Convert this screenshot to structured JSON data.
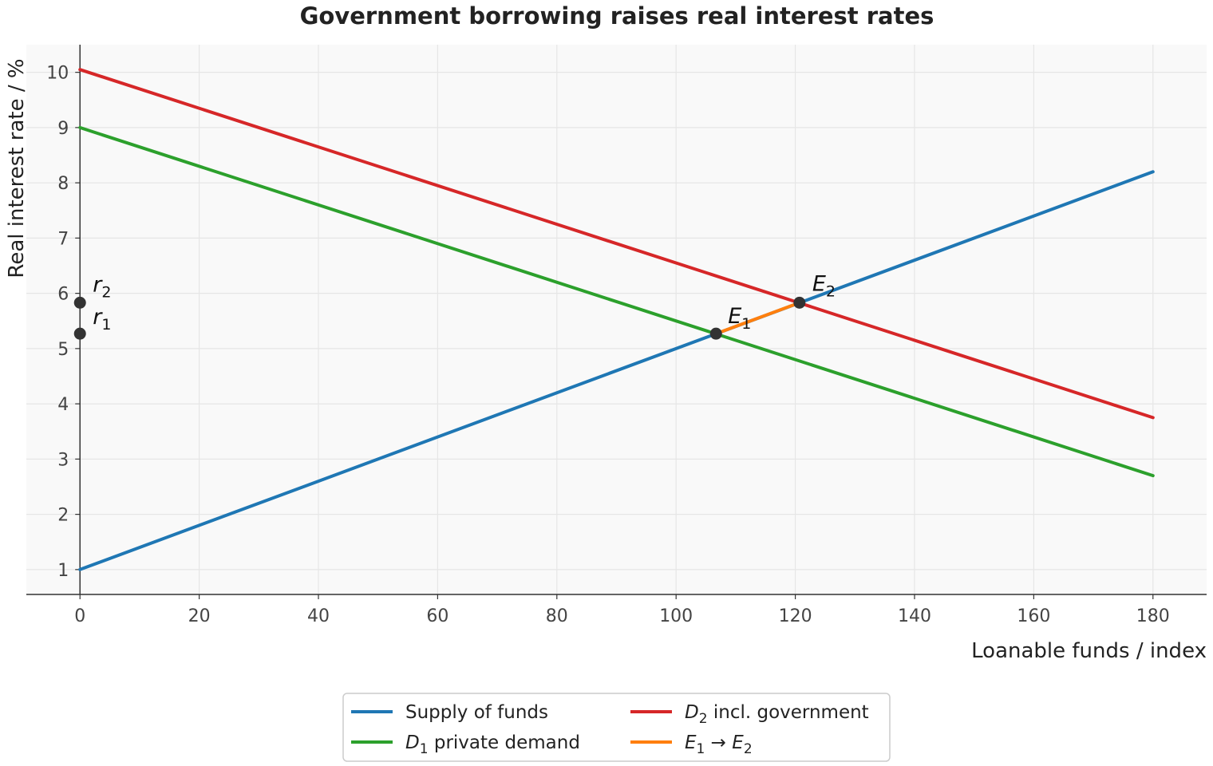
{
  "chart_data": {
    "type": "line",
    "title": "Government borrowing raises real interest rates",
    "xlabel": "Loanable funds / index",
    "ylabel": "Real interest rate / %",
    "xlim": [
      -9,
      189
    ],
    "ylim": [
      0.55,
      10.5
    ],
    "xticks": [
      0,
      20,
      40,
      60,
      80,
      100,
      120,
      140,
      160,
      180
    ],
    "yticks": [
      1,
      2,
      3,
      4,
      5,
      6,
      7,
      8,
      9,
      10
    ],
    "grid": true,
    "legend_position": "bottom-center",
    "series": [
      {
        "id": "supply",
        "name": "Supply of funds",
        "color": "#1f77b4",
        "x": [
          0,
          180
        ],
        "y": [
          1.0,
          8.2
        ]
      },
      {
        "id": "d1",
        "name": "D1 private demand",
        "color": "#2ca02c",
        "x": [
          0,
          180
        ],
        "y": [
          9.0,
          2.7
        ]
      },
      {
        "id": "d2",
        "name": "D2 incl. government",
        "color": "#d62728",
        "x": [
          0,
          180
        ],
        "y": [
          10.05,
          3.75
        ]
      },
      {
        "id": "shift",
        "name": "E1 → E2",
        "color": "#ff7f0e",
        "x": [
          106.7,
          120.7
        ],
        "y": [
          5.27,
          5.83
        ]
      }
    ],
    "points": [
      {
        "id": "E1",
        "x": 106.7,
        "y": 5.27
      },
      {
        "id": "E2",
        "x": 120.7,
        "y": 5.83
      },
      {
        "id": "r1",
        "x": 0,
        "y": 5.27
      },
      {
        "id": "r2",
        "x": 0,
        "y": 5.83
      }
    ],
    "annotations": [
      {
        "id": "E1",
        "base": "E",
        "sub": "1"
      },
      {
        "id": "E2",
        "base": "E",
        "sub": "2"
      },
      {
        "id": "r1",
        "base": "r",
        "sub": "1"
      },
      {
        "id": "r2",
        "base": "r",
        "sub": "2"
      }
    ],
    "legend": [
      {
        "series": "supply",
        "parts": [
          {
            "t": "Supply of funds"
          }
        ]
      },
      {
        "series": "d1",
        "parts": [
          {
            "t": "D",
            "it": true
          },
          {
            "t": "1",
            "sub": true
          },
          {
            "t": " private demand"
          }
        ]
      },
      {
        "series": "d2",
        "parts": [
          {
            "t": "D",
            "it": true
          },
          {
            "t": "2",
            "sub": true
          },
          {
            "t": " incl. government"
          }
        ]
      },
      {
        "series": "shift",
        "parts": [
          {
            "t": "E",
            "it": true
          },
          {
            "t": "1",
            "sub": true
          },
          {
            "t": " → "
          },
          {
            "t": "E",
            "it": true
          },
          {
            "t": "2",
            "sub": true
          }
        ]
      }
    ],
    "colors": {
      "background": "#f9f9f9",
      "grid": "#e6e6e6",
      "axis": "#333333",
      "marker": "#333333"
    }
  }
}
